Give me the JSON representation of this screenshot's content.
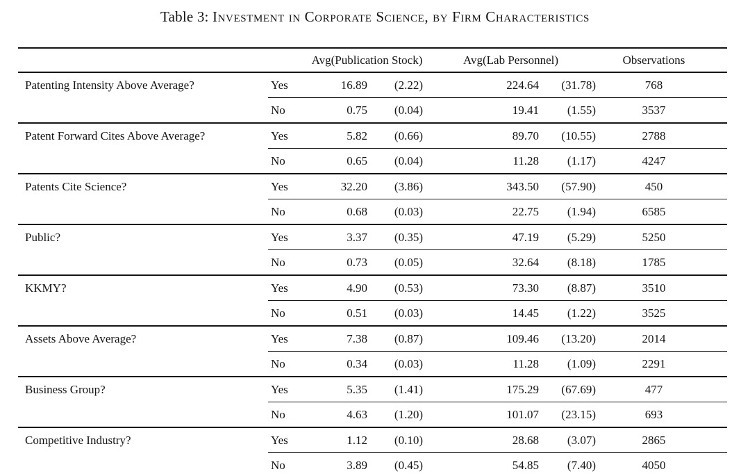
{
  "title": {
    "prefix": "Table 3: ",
    "text": "Investment in Corporate Science, by Firm Characteristics"
  },
  "table": {
    "header": {
      "pub_stock": "Avg(Publication Stock)",
      "lab_personnel": "Avg(Lab Personnel)",
      "observations": "Observations"
    },
    "rows": [
      {
        "characteristic": "Patenting Intensity Above Average?",
        "answer": "Yes",
        "pub_stock": "16.89",
        "pub_stock_se": "(2.22)",
        "lab_personnel": "224.64",
        "lab_personnel_se": "(31.78)",
        "observations": "768"
      },
      {
        "characteristic": "",
        "answer": "No",
        "pub_stock": "0.75",
        "pub_stock_se": "(0.04)",
        "lab_personnel": "19.41",
        "lab_personnel_se": "(1.55)",
        "observations": "3537"
      },
      {
        "characteristic": "Patent Forward Cites Above Average?",
        "answer": "Yes",
        "pub_stock": "5.82",
        "pub_stock_se": "(0.66)",
        "lab_personnel": "89.70",
        "lab_personnel_se": "(10.55)",
        "observations": "2788"
      },
      {
        "characteristic": "",
        "answer": "No",
        "pub_stock": "0.65",
        "pub_stock_se": "(0.04)",
        "lab_personnel": "11.28",
        "lab_personnel_se": "(1.17)",
        "observations": "4247"
      },
      {
        "characteristic": "Patents Cite Science?",
        "answer": "Yes",
        "pub_stock": "32.20",
        "pub_stock_se": "(3.86)",
        "lab_personnel": "343.50",
        "lab_personnel_se": "(57.90)",
        "observations": "450"
      },
      {
        "characteristic": "",
        "answer": "No",
        "pub_stock": "0.68",
        "pub_stock_se": "(0.03)",
        "lab_personnel": "22.75",
        "lab_personnel_se": "(1.94)",
        "observations": "6585"
      },
      {
        "characteristic": "Public?",
        "answer": "Yes",
        "pub_stock": "3.37",
        "pub_stock_se": "(0.35)",
        "lab_personnel": "47.19",
        "lab_personnel_se": "(5.29)",
        "observations": "5250"
      },
      {
        "characteristic": "",
        "answer": "No",
        "pub_stock": "0.73",
        "pub_stock_se": "(0.05)",
        "lab_personnel": "32.64",
        "lab_personnel_se": "(8.18)",
        "observations": "1785"
      },
      {
        "characteristic": "KKMY?",
        "answer": "Yes",
        "pub_stock": "4.90",
        "pub_stock_se": "(0.53)",
        "lab_personnel": "73.30",
        "lab_personnel_se": "(8.87)",
        "observations": "3510"
      },
      {
        "characteristic": "",
        "answer": "No",
        "pub_stock": "0.51",
        "pub_stock_se": "(0.03)",
        "lab_personnel": "14.45",
        "lab_personnel_se": "(1.22)",
        "observations": "3525"
      },
      {
        "characteristic": "Assets Above Average?",
        "answer": "Yes",
        "pub_stock": "7.38",
        "pub_stock_se": "(0.87)",
        "lab_personnel": "109.46",
        "lab_personnel_se": "(13.20)",
        "observations": "2014"
      },
      {
        "characteristic": "",
        "answer": "No",
        "pub_stock": "0.34",
        "pub_stock_se": "(0.03)",
        "lab_personnel": "11.28",
        "lab_personnel_se": "(1.09)",
        "observations": "2291"
      },
      {
        "characteristic": "Business Group?",
        "answer": "Yes",
        "pub_stock": "5.35",
        "pub_stock_se": "(1.41)",
        "lab_personnel": "175.29",
        "lab_personnel_se": "(67.69)",
        "observations": "477"
      },
      {
        "characteristic": "",
        "answer": "No",
        "pub_stock": "4.63",
        "pub_stock_se": "(1.20)",
        "lab_personnel": "101.07",
        "lab_personnel_se": "(23.15)",
        "observations": "693"
      },
      {
        "characteristic": "Competitive Industry?",
        "answer": "Yes",
        "pub_stock": "1.12",
        "pub_stock_se": "(0.10)",
        "lab_personnel": "28.68",
        "lab_personnel_se": "(3.07)",
        "observations": "2865"
      },
      {
        "characteristic": "",
        "answer": "No",
        "pub_stock": "3.89",
        "pub_stock_se": "(0.45)",
        "lab_personnel": "54.85",
        "lab_personnel_se": "(7.40)",
        "observations": "4050"
      }
    ],
    "colors": {
      "text": "#141414",
      "rule": "#141414",
      "background": "#ffffff"
    }
  }
}
